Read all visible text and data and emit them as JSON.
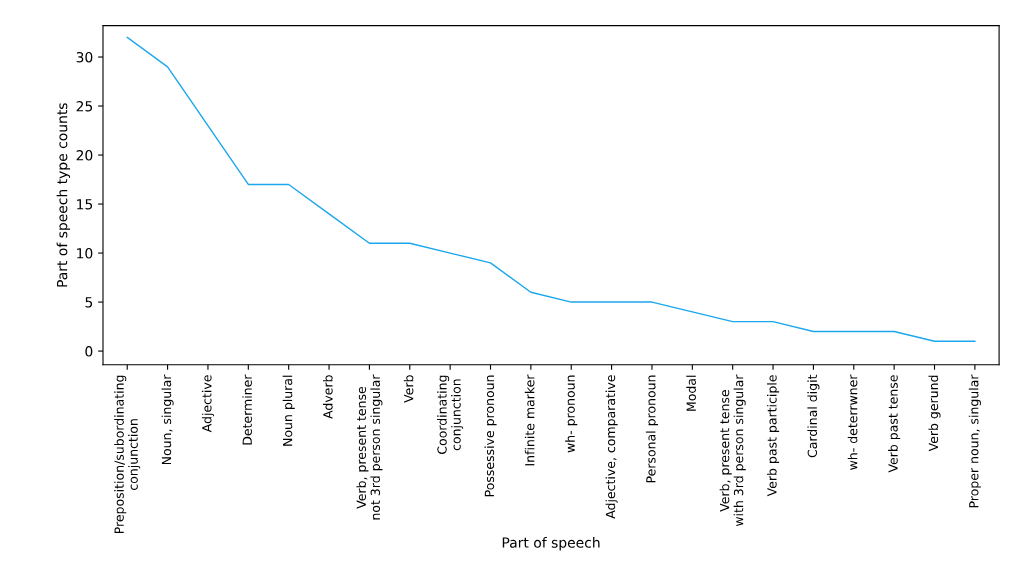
{
  "chart_data": {
    "type": "line",
    "xlabel": "Part of speech",
    "ylabel": "Part of speech type counts",
    "categories": [
      "Preposition/subordinating\nconjunction",
      "Noun, singular",
      "Adjective",
      "Determiner",
      "Noun plural",
      "Adverb",
      "Verb, present tense\nnot 3rd person singular",
      "Verb",
      "Coordinating\nconjunction",
      "Possessive pronoun",
      "Infinite marker",
      "wh- pronoun",
      "Adjective, comparative",
      "Personal pronoun",
      "Modal",
      "Verb, present tense\nwith 3rd person singular",
      "Verb past participle",
      "Cardinal digit",
      "wh- deterrwner",
      "Verb past tense",
      "Verb gerund",
      "Proper noun, singular"
    ],
    "series": [
      {
        "color": "#1aa7ec",
        "values": [
          32,
          29,
          23,
          17,
          17,
          14,
          11,
          11,
          10,
          9,
          6,
          5,
          5,
          5,
          4,
          3,
          3,
          2,
          2,
          2,
          1,
          1
        ]
      }
    ],
    "ylim": [
      -1.4,
      33.2
    ],
    "yticks": [
      0,
      5,
      10,
      15,
      20,
      25,
      30
    ],
    "grid": false
  }
}
